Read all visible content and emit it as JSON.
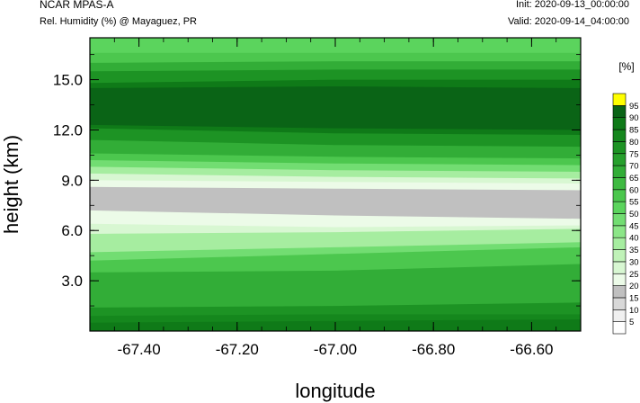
{
  "header": {
    "model": "NCAR MPAS-A",
    "variable": "Rel. Humidity (%) @ Mayaguez, PR",
    "init": "Init: 2020-09-13_00:00:00",
    "valid": "Valid: 2020-09-14_04:00:00"
  },
  "chart_data": {
    "type": "heatmap",
    "subtype": "filled-contour cross-section",
    "xlabel": "longitude",
    "ylabel": "height (km)",
    "xlim": [
      -67.5,
      -66.5
    ],
    "ylim": [
      0,
      17.5
    ],
    "x_ticks": [
      "-67.40",
      "-67.20",
      "-67.00",
      "-66.80",
      "-66.60"
    ],
    "x_tick_values": [
      -67.4,
      -67.2,
      -67.0,
      -66.8,
      -66.6
    ],
    "y_ticks": [
      "3.0",
      "6.0",
      "9.0",
      "12.0",
      "15.0"
    ],
    "y_tick_values": [
      3.0,
      6.0,
      9.0,
      12.0,
      15.0
    ],
    "colorbar": {
      "title": "[%]",
      "labels": [
        "5",
        "10",
        "15",
        "20",
        "25",
        "30",
        "35",
        "40",
        "45",
        "50",
        "55",
        "60",
        "65",
        "70",
        "75",
        "80",
        "85",
        "90",
        "95"
      ],
      "colors": [
        "#ffffff",
        "#f0f0f0",
        "#d8d8d8",
        "#c0c0c0",
        "#ecfbe8",
        "#d8f7d2",
        "#c0f2b8",
        "#a6eda0",
        "#8ce688",
        "#72dd72",
        "#5bd45d",
        "#4cc74e",
        "#3fba42",
        "#32ad37",
        "#27a02d",
        "#1d9324",
        "#15871d",
        "#0f7a18",
        "#0a6416",
        "#ffff00"
      ]
    },
    "layers": [
      {
        "rh": 55,
        "y_west": 17.5,
        "y_mid": 17.5,
        "y_east": 17.5
      },
      {
        "rh": 60,
        "y_west": 16.6,
        "y_mid": 16.6,
        "y_east": 16.6
      },
      {
        "rh": 70,
        "y_west": 16.0,
        "y_mid": 16.1,
        "y_east": 16.1
      },
      {
        "rh": 80,
        "y_west": 15.5,
        "y_mid": 15.6,
        "y_east": 15.6
      },
      {
        "rh": 90,
        "y_west": 14.8,
        "y_mid": 15.0,
        "y_east": 15.0
      },
      {
        "rh": 95,
        "y_west": 14.5,
        "y_mid": 14.6,
        "y_east": 14.5
      },
      {
        "rh": 90,
        "y_west": 12.3,
        "y_mid": 12.1,
        "y_east": 12.0
      },
      {
        "rh": 80,
        "y_west": 12.1,
        "y_mid": 11.8,
        "y_east": 11.7
      },
      {
        "rh": 70,
        "y_west": 11.4,
        "y_mid": 11.1,
        "y_east": 11.0
      },
      {
        "rh": 60,
        "y_west": 10.6,
        "y_mid": 10.4,
        "y_east": 10.3
      },
      {
        "rh": 50,
        "y_west": 10.2,
        "y_mid": 10.0,
        "y_east": 9.9
      },
      {
        "rh": 40,
        "y_west": 9.8,
        "y_mid": 9.6,
        "y_east": 9.5
      },
      {
        "rh": 30,
        "y_west": 9.4,
        "y_mid": 9.2,
        "y_east": 9.1
      },
      {
        "rh": 25,
        "y_west": 9.0,
        "y_mid": 8.9,
        "y_east": 8.8
      },
      {
        "rh": 20,
        "y_west": 8.6,
        "y_mid": 8.5,
        "y_east": 8.4
      },
      {
        "rh": 25,
        "y_west": 7.2,
        "y_mid": 6.9,
        "y_east": 6.7
      },
      {
        "rh": 30,
        "y_west": 6.4,
        "y_mid": 6.2,
        "y_east": 6.3
      },
      {
        "rh": 40,
        "y_west": 5.8,
        "y_mid": 5.9,
        "y_east": 6.1
      },
      {
        "rh": 50,
        "y_west": 4.7,
        "y_mid": 5.0,
        "y_east": 5.3
      },
      {
        "rh": 60,
        "y_west": 4.2,
        "y_mid": 4.6,
        "y_east": 5.0
      },
      {
        "rh": 70,
        "y_west": 3.5,
        "y_mid": 3.6,
        "y_east": 4.0
      },
      {
        "rh": 80,
        "y_west": 1.4,
        "y_mid": 1.5,
        "y_east": 1.7
      },
      {
        "rh": 85,
        "y_west": 0.9,
        "y_mid": 1.0,
        "y_east": 1.0
      },
      {
        "rh": 90,
        "y_west": 0.5,
        "y_mid": 0.6,
        "y_east": 0.7
      }
    ]
  }
}
